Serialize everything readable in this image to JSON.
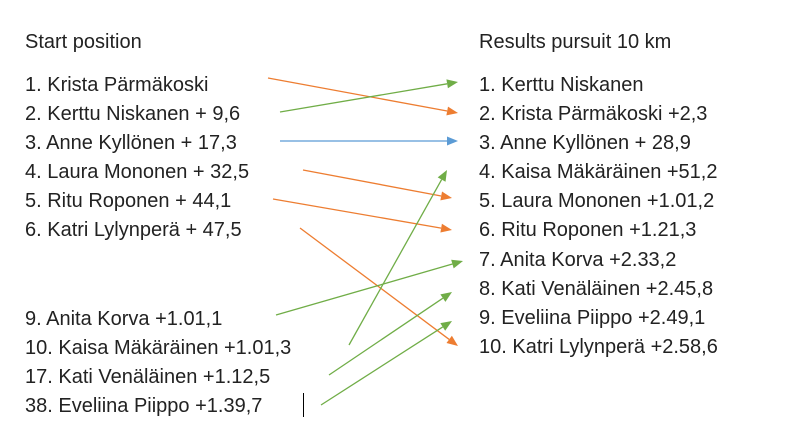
{
  "start_heading": "Start position",
  "results_heading": "Results pursuit 10 km",
  "start_list": [
    "1. Krista Pärmäkoski",
    "2. Kerttu Niskanen + 9,6",
    "3. Anne Kyllönen + 17,3",
    "4. Laura Mononen + 32,5",
    "5. Ritu Roponen + 44,1",
    "6. Katri Lylynperä + 47,5",
    "9. Anita Korva +1.01,1",
    "10. Kaisa Mäkäräinen +1.01,3",
    "17. Kati Venäläinen +1.12,5",
    "38. Eveliina Piippo +1.39,7"
  ],
  "results_list": [
    "1. Kerttu Niskanen",
    "2. Krista Pärmäkoski  +2,3",
    "3. Anne Kyllönen + 28,9",
    "4. Kaisa Mäkäräinen +51,2",
    "5. Laura Mononen +1.01,2",
    "6. Ritu Roponen +1.21,3",
    "7. Anita Korva +2.33,2",
    "8. Kati Venäläinen +2.45,8",
    "9. Eveliina Piippo +2.49,1",
    "10. Katri Lylynperä +2.58,6"
  ],
  "arrows": [
    {
      "from": 0,
      "to": 1,
      "color": "#ED7D31"
    },
    {
      "from": 1,
      "to": 0,
      "color": "#70AD47"
    },
    {
      "from": 2,
      "to": 2,
      "color": "#5B9BD5"
    },
    {
      "from": 3,
      "to": 4,
      "color": "#ED7D31"
    },
    {
      "from": 4,
      "to": 5,
      "color": "#ED7D31"
    },
    {
      "from": 5,
      "to": 9,
      "color": "#ED7D31"
    },
    {
      "from": 6,
      "to": 6,
      "color": "#70AD47"
    },
    {
      "from": 7,
      "to": 3,
      "color": "#70AD47"
    },
    {
      "from": 8,
      "to": 7,
      "color": "#70AD47"
    },
    {
      "from": 9,
      "to": 8,
      "color": "#70AD47"
    }
  ]
}
